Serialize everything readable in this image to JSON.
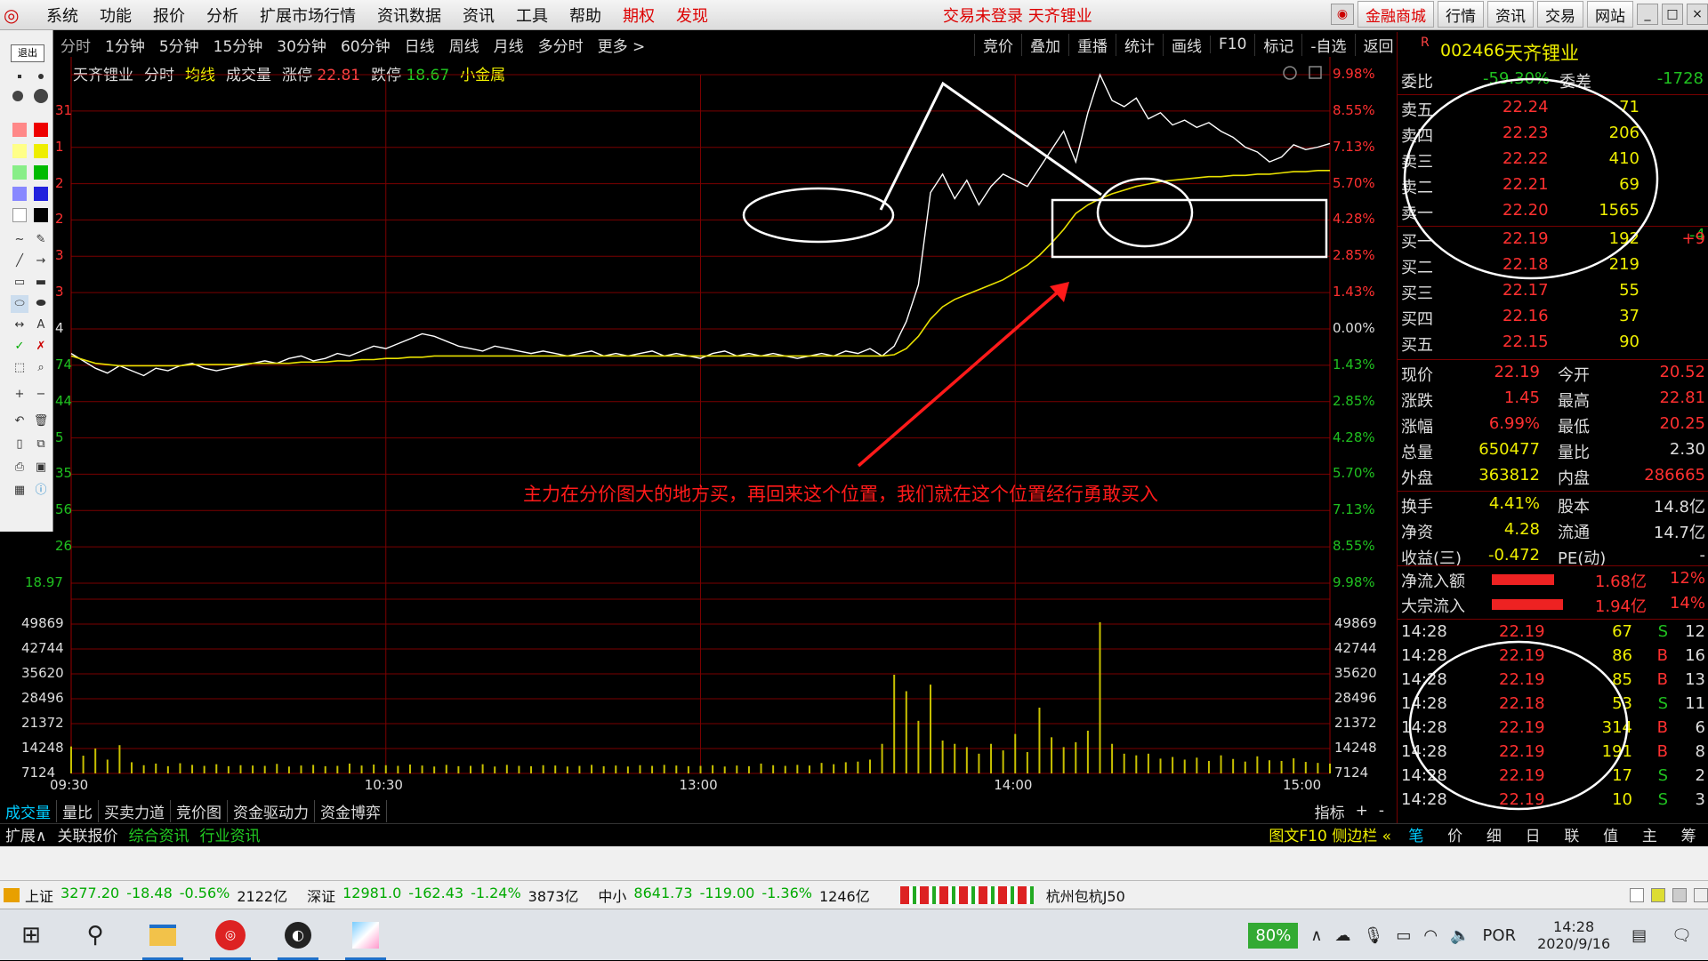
{
  "menubar": {
    "items": [
      "系统",
      "功能",
      "报价",
      "分析",
      "扩展市场行情",
      "资讯数据",
      "资讯",
      "工具",
      "帮助"
    ],
    "red_items": [
      "期权",
      "发现"
    ],
    "status": "交易未登录  天齐锂业",
    "right_buttons": [
      "金融商城",
      "行情",
      "资讯",
      "交易",
      "网站"
    ]
  },
  "toolbox": {
    "label": "退出",
    "undo": "↶"
  },
  "period": {
    "items": [
      "分时",
      "1分钟",
      "5分钟",
      "15分钟",
      "30分钟",
      "60分钟",
      "日线",
      "周线",
      "月线",
      "多分时",
      "更多"
    ],
    "more_icon": ">"
  },
  "funcbar": {
    "items": [
      "竞价",
      "叠加",
      "重播",
      "统计",
      "画线",
      "F10",
      "标记",
      "-自选",
      "返回"
    ]
  },
  "chartinfo": {
    "name": "天齐锂业",
    "mode": "分时",
    "avg": "均线",
    "vol": "成交量",
    "up_label": "涨停",
    "up_value": "22.81",
    "down_label": "跌停",
    "down_value": "18.67",
    "sector": "小金属"
  },
  "price_axis": {
    "left": [
      "",
      "",
      "",
      "",
      "",
      "",
      "",
      "",
      "",
      "",
      "",
      "",
      "",
      "18.97"
    ],
    "right": [
      "9.98%",
      "8.55%",
      "7.13%",
      "5.70%",
      "4.28%",
      "2.85%",
      "1.43%",
      "0.00%",
      "1.43%",
      "2.85%",
      "4.28%",
      "5.70%",
      "7.13%",
      "8.55%",
      "9.98%"
    ],
    "left_frag": [
      "31",
      "1",
      "2",
      "2",
      "3",
      "3",
      "4",
      "74",
      "44",
      "5",
      "35",
      "56",
      "26"
    ]
  },
  "volume_axis": {
    "labels": [
      "49869",
      "42744",
      "35620",
      "28496",
      "21372",
      "14248",
      "7124"
    ]
  },
  "time_axis": {
    "labels": [
      "09:30",
      "10:30",
      "13:00",
      "14:00",
      "15:00"
    ]
  },
  "annotation": {
    "text": "主力在分价图大的地方买，再回来这个位置，我们就在这个位置经行勇敢买入"
  },
  "chart_data": {
    "type": "line",
    "series": [
      {
        "name": "",
        "values": [
          20.54,
          20.48,
          20.42,
          20.38,
          20.44,
          20.4,
          20.36,
          20.42,
          20.4,
          20.44,
          20.46,
          20.42,
          20.4,
          20.42,
          20.44,
          20.46,
          20.48,
          20.46,
          20.5,
          20.52,
          20.48,
          20.5,
          20.54,
          20.52,
          20.56,
          20.6,
          20.58,
          20.62,
          20.66,
          20.7,
          20.68,
          20.64,
          20.6,
          20.58,
          20.56,
          20.6,
          20.58,
          20.56,
          20.54,
          20.56,
          20.54,
          20.52,
          20.54,
          20.56,
          20.52,
          20.54,
          20.52,
          20.54,
          20.56,
          20.52,
          20.54,
          20.52,
          20.5,
          20.54,
          20.56,
          20.52,
          20.54,
          20.52,
          20.54,
          20.52,
          20.5,
          20.52,
          20.54,
          20.52,
          20.56,
          20.54,
          20.58,
          20.52,
          20.6,
          20.8,
          21.1,
          21.85,
          22.0,
          21.8,
          21.95,
          21.75,
          21.9,
          22.0,
          21.95,
          21.9,
          22.05,
          22.2,
          22.35,
          22.1,
          22.5,
          22.81,
          22.6,
          22.55,
          22.62,
          22.45,
          22.5,
          22.4,
          22.44,
          22.38,
          22.42,
          22.35,
          22.3,
          22.22,
          22.18,
          22.1,
          22.14,
          22.24,
          22.2,
          22.22,
          22.25
        ]
      },
      {
        "name": "",
        "values": [
          20.52,
          20.49,
          20.46,
          20.45,
          20.44,
          20.44,
          20.44,
          20.44,
          20.44,
          20.44,
          20.45,
          20.45,
          20.45,
          20.45,
          20.45,
          20.46,
          20.46,
          20.46,
          20.46,
          20.47,
          20.47,
          20.47,
          20.48,
          20.48,
          20.49,
          20.49,
          20.5,
          20.5,
          20.51,
          20.51,
          20.52,
          20.52,
          20.52,
          20.52,
          20.52,
          20.52,
          20.52,
          20.52,
          20.52,
          20.52,
          20.52,
          20.52,
          20.52,
          20.52,
          20.52,
          20.52,
          20.52,
          20.52,
          20.52,
          20.52,
          20.52,
          20.52,
          20.52,
          20.52,
          20.52,
          20.52,
          20.52,
          20.52,
          20.52,
          20.52,
          20.52,
          20.52,
          20.52,
          20.52,
          20.52,
          20.52,
          20.52,
          20.52,
          20.53,
          20.58,
          20.68,
          20.82,
          20.92,
          20.98,
          21.02,
          21.06,
          21.1,
          21.14,
          21.2,
          21.26,
          21.34,
          21.44,
          21.55,
          21.68,
          21.75,
          21.8,
          21.84,
          21.87,
          21.9,
          21.92,
          21.94,
          21.95,
          21.96,
          21.97,
          21.98,
          21.98,
          21.99,
          21.99,
          22.0,
          22.0,
          22.01,
          22.02,
          22.02,
          22.03,
          22.03
        ]
      }
    ],
    "volume": [
      8200,
      5400,
      7600,
      4200,
      8600,
      3400,
      2500,
      3000,
      2200,
      3100,
      2600,
      2300,
      2800,
      2200,
      2500,
      2400,
      2300,
      2900,
      2100,
      2400,
      2600,
      2200,
      2300,
      3000,
      2400,
      2700,
      2500,
      2300,
      2700,
      2400,
      2100,
      2600,
      2200,
      2300,
      2800,
      2100,
      2600,
      2300,
      2200,
      2500,
      2400,
      2100,
      2300,
      2600,
      2200,
      2400,
      2100,
      2500,
      2300,
      2600,
      2400,
      2200,
      2300,
      2500,
      2100,
      2400,
      2200,
      3000,
      2500,
      2300,
      2600,
      2400,
      3200,
      2800,
      3400,
      3600,
      4200,
      9000,
      30000,
      25000,
      16000,
      27000,
      10000,
      9000,
      8000,
      6000,
      9000,
      7000,
      12000,
      6500,
      20000,
      11000,
      8000,
      9500,
      13000,
      46000,
      9000,
      6000,
      5500,
      6000,
      4500,
      5000,
      4200,
      4800,
      3800,
      5500,
      4400,
      3600,
      5200,
      4000,
      3800,
      4600,
      3500,
      3200,
      3000
    ],
    "ylim": [
      18.67,
      22.81
    ],
    "y2label": "%",
    "x_ticks": [
      "09:30",
      "10:30",
      "13:00",
      "14:00",
      "15:00"
    ]
  },
  "quote": {
    "code": "002466",
    "name": "天齐锂业",
    "code_prefix": "R",
    "ratio_label": "委比",
    "ratio_value": "-59.30%",
    "diff_label": "委差",
    "diff_value": "-1728",
    "asks": [
      [
        "卖五",
        "22.24",
        "71"
      ],
      [
        "卖四",
        "22.23",
        "206"
      ],
      [
        "卖三",
        "22.22",
        "410"
      ],
      [
        "卖二",
        "22.21",
        "69"
      ],
      [
        "卖一",
        "22.20",
        "1565"
      ]
    ],
    "bids": [
      [
        "买一",
        "22.19",
        "192"
      ],
      [
        "买二",
        "22.18",
        "219"
      ],
      [
        "买三",
        "22.17",
        "55"
      ],
      [
        "买四",
        "22.16",
        "37"
      ],
      [
        "买五",
        "22.15",
        "90"
      ]
    ],
    "ask_suffix": "-4",
    "bid_suffix": "+9",
    "stats": [
      [
        "现价",
        "22.19",
        "今开",
        "20.52"
      ],
      [
        "涨跌",
        "1.45",
        "最高",
        "22.81"
      ],
      [
        "涨幅",
        "6.99%",
        "最低",
        "20.25"
      ],
      [
        "总量",
        "650477",
        "量比",
        "2.30"
      ],
      [
        "外盘",
        "363812",
        "内盘",
        "286665"
      ],
      [
        "换手",
        "4.41%",
        "股本",
        "14.8亿"
      ],
      [
        "净资",
        "4.28",
        "流通",
        "14.7亿"
      ],
      [
        "收益(三)",
        "-0.472",
        "PE(动)",
        "-"
      ]
    ],
    "flows": [
      [
        "净流入额",
        "1.68亿",
        "12%"
      ],
      [
        "大宗流入",
        "1.94亿",
        "14%"
      ]
    ],
    "ticks": [
      [
        "14:28",
        "22.19",
        "67",
        "S",
        "12"
      ],
      [
        "14:28",
        "22.19",
        "86",
        "B",
        "16"
      ],
      [
        "14:28",
        "22.19",
        "85",
        "B",
        "13"
      ],
      [
        "14:28",
        "22.18",
        "53",
        "S",
        "11"
      ],
      [
        "14:28",
        "22.19",
        "314",
        "B",
        "6"
      ],
      [
        "14:28",
        "22.19",
        "191",
        "B",
        "8"
      ],
      [
        "14:28",
        "22.19",
        "17",
        "S",
        "2"
      ],
      [
        "14:28",
        "22.19",
        "10",
        "S",
        "3"
      ]
    ]
  },
  "bottomtabs": {
    "items": [
      "成交量",
      "量比",
      "买卖力道",
      "竞价图",
      "资金驱动力",
      "资金博弈"
    ],
    "right": [
      "指标",
      "+",
      "-"
    ]
  },
  "bottomtabs2": {
    "items": [
      "扩展∧",
      "关联报价",
      "综合资讯",
      "行业资讯"
    ],
    "right": "图文F10 侧边栏 «"
  },
  "rtabs": {
    "items": [
      "笔",
      "价",
      "细",
      "日",
      "联",
      "值",
      "主",
      "筹"
    ]
  },
  "indexbar": {
    "items": [
      [
        "上证",
        "3277.20",
        "-18.48",
        "-0.56%",
        "2122亿"
      ],
      [
        "深证",
        "12981.0",
        "-162.43",
        "-1.24%",
        "3873亿"
      ],
      [
        "中小",
        "8641.73",
        "-119.00",
        "-1.36%",
        "1246亿"
      ]
    ],
    "ticker": "杭州包杭J50"
  },
  "taskbar": {
    "battery": "80%",
    "lang": "POR",
    "time": "14:28",
    "date": "2020/9/16"
  },
  "colors": {
    "price": "#ffffff",
    "avg": "#e8e000",
    "vol": "#c8c000",
    "grid": "#7a0000",
    "up": "#ff3030",
    "down": "#20c020",
    "annotation": "#ff1a1a"
  }
}
